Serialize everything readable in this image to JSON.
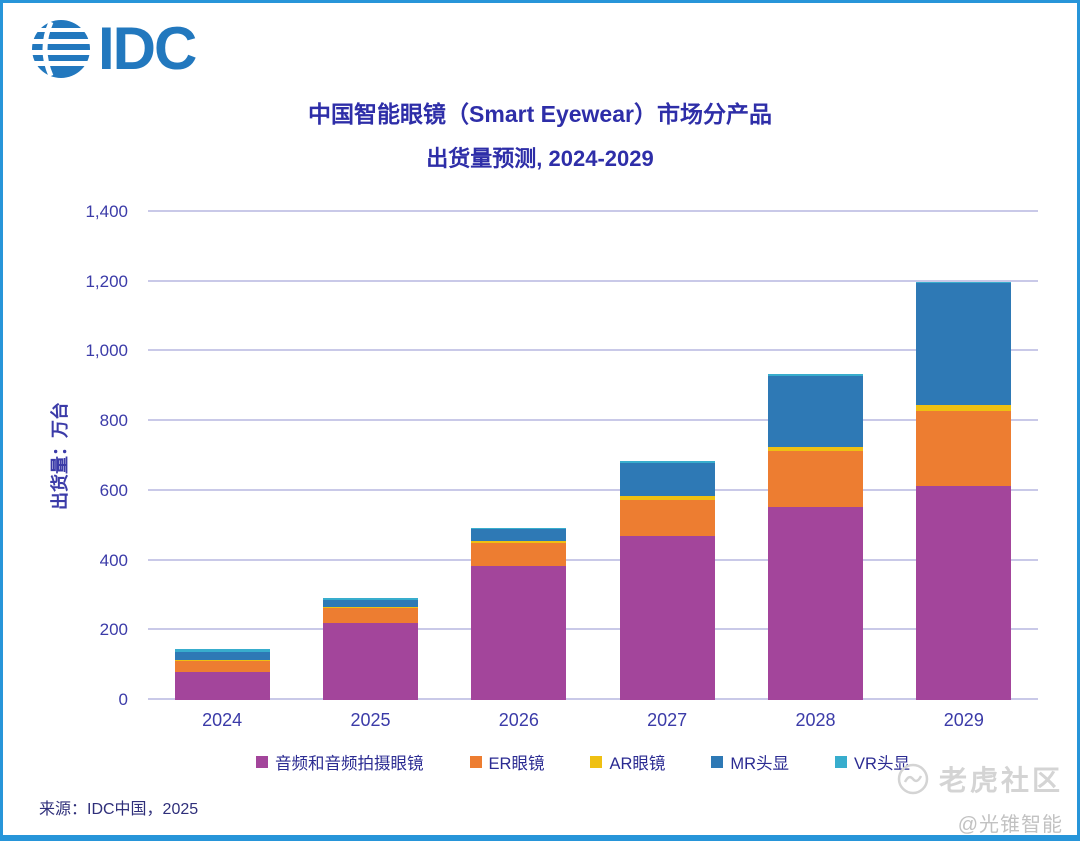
{
  "logo": {
    "text": "IDC"
  },
  "title": {
    "line1": "中国智能眼镜（Smart Eyewear）市场分产品",
    "line2": "出货量预测, 2024-2029"
  },
  "chart_data": {
    "type": "bar",
    "stacked": true,
    "categories": [
      "2024",
      "2025",
      "2026",
      "2027",
      "2028",
      "2029"
    ],
    "series": [
      {
        "name": "音频和音频拍摄眼镜",
        "color": "#A3459B",
        "values": [
          80,
          220,
          385,
          470,
          555,
          615
        ]
      },
      {
        "name": "ER眼镜",
        "color": "#ED7D31",
        "values": [
          32,
          45,
          65,
          105,
          160,
          215
        ]
      },
      {
        "name": "AR眼镜",
        "color": "#EFC012",
        "values": [
          2,
          3,
          5,
          10,
          10,
          15
        ]
      },
      {
        "name": "MR头显",
        "color": "#2E79B5",
        "values": [
          25,
          20,
          35,
          95,
          205,
          350
        ]
      },
      {
        "name": "VR头显",
        "color": "#38ADCD",
        "values": [
          8,
          6,
          5,
          5,
          5,
          5
        ]
      }
    ],
    "ylabel": "出货量：万台",
    "ylim": [
      0,
      1400
    ],
    "ytick_step": 200,
    "ytick_labels": [
      "0",
      "200",
      "400",
      "600",
      "800",
      "1,000",
      "1,200",
      "1,400"
    ],
    "grid": true,
    "legend_position": "bottom"
  },
  "colors": {
    "frame_border": "#2795D9",
    "logo_blue": "#2278BE",
    "title_text": "#2E2EA8",
    "axis_text": "#3B3BA8",
    "legend_text": "#2B2B92",
    "gridline": "#C9C9E8",
    "footer_text": "#2F2F7A",
    "watermark_gray": "#D4D4D4"
  },
  "footer": {
    "source": "来源：IDC中国，2025"
  },
  "watermark": {
    "brand": "老虎社区",
    "handle": "@光锥智能"
  }
}
